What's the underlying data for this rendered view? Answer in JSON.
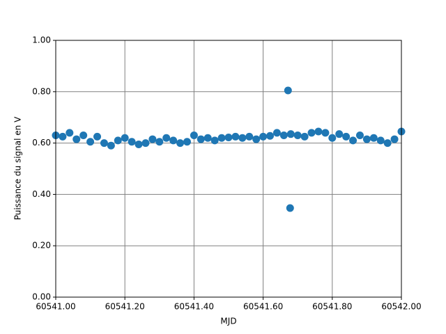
{
  "chart_data": {
    "type": "scatter",
    "x_label": "MJD",
    "y_label": "Puissance du signal en V",
    "grid": true,
    "series": [
      {
        "color": "#1f77b4",
        "x": [
          60541,
          60541.02,
          60541.04,
          60541.06,
          60541.08,
          60541.1,
          60541.12,
          60541.14,
          60541.16,
          60541.18,
          60541.2,
          60541.22,
          60541.24,
          60541.26,
          60541.28,
          60541.3,
          60541.32,
          60541.34,
          60541.36,
          60541.38,
          60541.4,
          60541.42,
          60541.44,
          60541.46,
          60541.48,
          60541.5,
          60541.52,
          60541.54,
          60541.56,
          60541.58,
          60541.6,
          60541.62,
          60541.64,
          60541.66,
          60541.68,
          60541.7,
          60541.72,
          60541.74,
          60541.76,
          60541.78,
          60541.8,
          60541.82,
          60541.84,
          60541.86,
          60541.88,
          60541.9,
          60541.92,
          60541.94,
          60541.96,
          60541.98,
          60542,
          60541.672,
          60541.678
        ],
        "values": [
          0.63,
          0.625,
          0.64,
          0.615,
          0.63,
          0.605,
          0.625,
          0.6,
          0.59,
          0.61,
          0.62,
          0.605,
          0.595,
          0.6,
          0.615,
          0.605,
          0.62,
          0.61,
          0.6,
          0.605,
          0.63,
          0.615,
          0.62,
          0.61,
          0.62,
          0.622,
          0.625,
          0.62,
          0.625,
          0.615,
          0.625,
          0.628,
          0.64,
          0.63,
          0.635,
          0.63,
          0.625,
          0.64,
          0.645,
          0.64,
          0.62,
          0.635,
          0.625,
          0.61,
          0.63,
          0.615,
          0.62,
          0.61,
          0.6,
          0.615,
          0.645,
          0.805,
          0.347
        ]
      }
    ],
    "xlim": [
      60541,
      60542
    ],
    "xticks": [
      {
        "value": 60541,
        "label": "60541.00"
      },
      {
        "value": 60541.2,
        "label": "60541.20"
      },
      {
        "value": 60541.4,
        "label": "60541.40"
      },
      {
        "value": 60541.6,
        "label": "60541.60"
      },
      {
        "value": 60541.8,
        "label": "60541.80"
      },
      {
        "value": 60542,
        "label": "60542.00"
      }
    ],
    "ylim": [
      0,
      1
    ],
    "yticks": [
      {
        "value": 0,
        "label": "0.00"
      },
      {
        "value": 0.2,
        "label": "0.20"
      },
      {
        "value": 0.4,
        "label": "0.40"
      },
      {
        "value": 0.6,
        "label": "0.60"
      },
      {
        "value": 0.8,
        "label": "0.80"
      },
      {
        "value": 1,
        "label": "1.00"
      }
    ]
  }
}
